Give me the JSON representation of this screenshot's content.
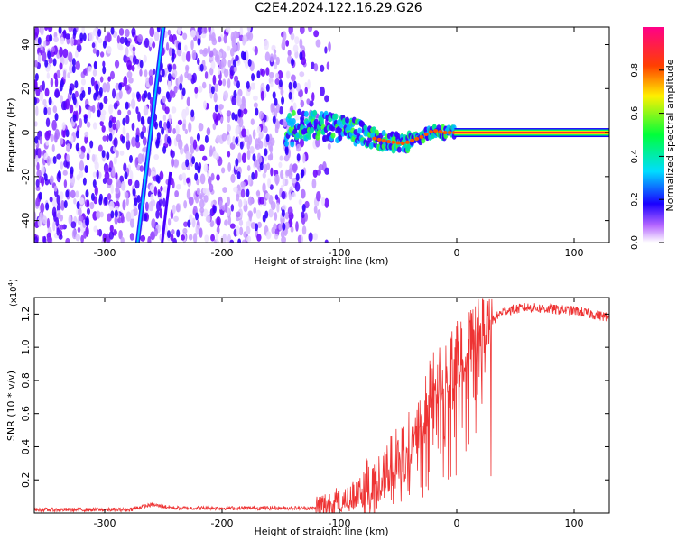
{
  "title": "C2E4.2024.122.16.29.G26",
  "chart_data": [
    {
      "type": "heatmap",
      "xlabel": "Height of straight line (km)",
      "ylabel": "Frequency (Hz)",
      "xlim": [
        -360,
        130
      ],
      "ylim": [
        -50,
        48
      ],
      "xticks": [
        "-300",
        "-200",
        "-100",
        "0",
        "100"
      ],
      "yticks": [
        "-40",
        "-20",
        "0",
        "20",
        "40"
      ],
      "colorbar": {
        "label": "Normalized spectral amplitude",
        "range": [
          0,
          1
        ],
        "ticks": [
          "0.0",
          "0.2",
          "0.4",
          "0.6",
          "0.8"
        ]
      },
      "signal_track": {
        "points_km_hz": [
          [
            -130,
            3
          ],
          [
            -110,
            3
          ],
          [
            -90,
            1
          ],
          [
            -75,
            -2
          ],
          [
            -60,
            -4
          ],
          [
            -45,
            -5
          ],
          [
            -30,
            -2
          ],
          [
            -20,
            1
          ],
          [
            -10,
            0
          ],
          [
            0,
            0
          ],
          [
            130,
            0
          ]
        ]
      },
      "interference_streak": {
        "from_km_hz": [
          -272,
          -50
        ],
        "to_km_hz": [
          -250,
          48
        ]
      }
    },
    {
      "type": "line",
      "xlabel": "Height of straight line (km)",
      "ylabel": "SNR (10 * v/v)",
      "scale_label": "(x10",
      "scale_exponent": "4",
      "scale_suffix": ")",
      "xlim": [
        -360,
        130
      ],
      "ylim": [
        0,
        1.3
      ],
      "xticks": [
        "-300",
        "-200",
        "-100",
        "0",
        "100"
      ],
      "yticks": [
        "0.2",
        "0.4",
        "0.6",
        "0.8",
        "1.0",
        "1.2"
      ],
      "series": [
        {
          "name": "SNR",
          "color": "#ee3333",
          "envelope_x": [
            -360,
            -280,
            -260,
            -240,
            -120,
            -100,
            -80,
            -60,
            -40,
            -20,
            0,
            20,
            40,
            60,
            100,
            130
          ],
          "envelope_y": [
            0.02,
            0.02,
            0.05,
            0.03,
            0.03,
            0.07,
            0.13,
            0.23,
            0.42,
            0.78,
            0.95,
            1.1,
            1.22,
            1.24,
            1.22,
            1.18
          ]
        }
      ]
    }
  ]
}
